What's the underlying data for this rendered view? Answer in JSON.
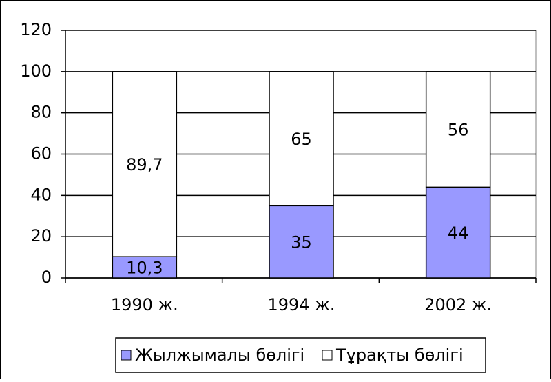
{
  "chart_data": {
    "type": "bar",
    "stacked": true,
    "categories": [
      "1990 ж.",
      "1994 ж.",
      "2002 ж."
    ],
    "series": [
      {
        "name": "Жылжымалы бөлігі",
        "color": "#9999ff",
        "values": [
          10.3,
          35,
          44
        ],
        "value_labels": [
          "10,3",
          "35",
          "44"
        ]
      },
      {
        "name": "Тұрақты бөлігі",
        "color": "#ffffff",
        "values": [
          89.7,
          65,
          56
        ],
        "value_labels": [
          "89,7",
          "65",
          "56"
        ]
      }
    ],
    "ylim": [
      0,
      120
    ],
    "yticks": [
      0,
      20,
      40,
      60,
      80,
      100,
      120
    ],
    "grid": true,
    "legend": "bottom"
  }
}
